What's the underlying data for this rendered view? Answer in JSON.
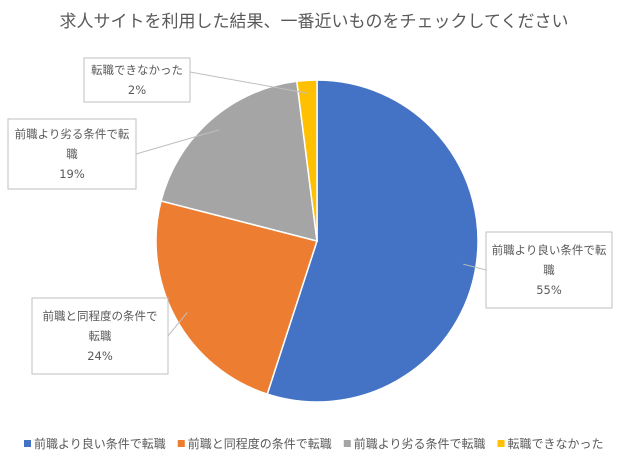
{
  "chart_data": {
    "type": "pie",
    "title": "求人サイトを利用した結果、一番近いものをチェックしてください",
    "slices": [
      {
        "label": "前職より良い条件で転職",
        "value": 55,
        "value_label": "55%",
        "color": "#4472C4",
        "callout_lines": [
          "前職より良い条件で転",
          "職"
        ]
      },
      {
        "label": "前職と同程度の条件で転職",
        "value": 24,
        "value_label": "24%",
        "color": "#ED7D31",
        "callout_lines": [
          "前職と同程度の条件で",
          "転職"
        ]
      },
      {
        "label": "前職より劣る条件で転職",
        "value": 19,
        "value_label": "19%",
        "color": "#A5A5A5",
        "callout_lines": [
          "前職より劣る条件で転",
          "職"
        ]
      },
      {
        "label": "転職できなかった",
        "value": 2,
        "value_label": "2%",
        "color": "#FFC000",
        "callout_lines": [
          "転職できなかった"
        ]
      }
    ],
    "legend_position": "bottom"
  }
}
